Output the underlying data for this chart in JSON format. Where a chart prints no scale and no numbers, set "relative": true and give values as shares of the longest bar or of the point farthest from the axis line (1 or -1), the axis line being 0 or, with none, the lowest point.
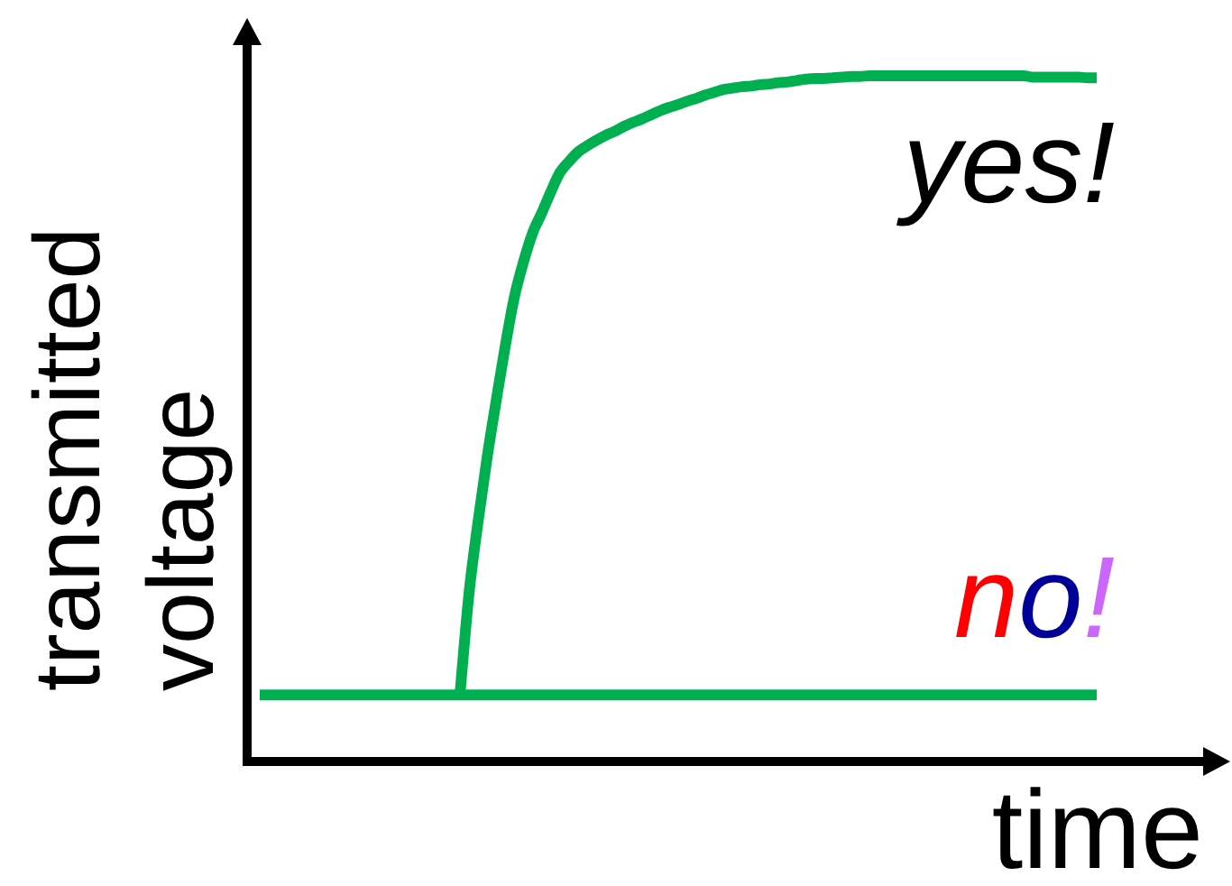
{
  "chart_data": {
    "type": "line",
    "relative": true,
    "xlabel": "time",
    "ylabel": "transmitted voltage",
    "marker": "none",
    "categories": [
      null,
      null,
      null,
      null,
      null,
      null,
      null,
      null,
      null,
      null,
      null,
      null,
      null,
      null,
      null,
      null,
      null,
      null,
      null,
      null,
      null,
      null,
      null,
      null,
      null,
      null,
      null,
      null,
      null,
      null,
      null,
      null,
      null,
      null,
      null,
      null,
      null,
      null,
      null,
      null,
      null,
      null,
      null,
      null,
      null,
      null,
      null,
      null,
      null,
      null,
      null,
      null,
      null,
      null,
      null,
      null,
      null,
      null,
      null,
      null,
      null,
      null,
      null,
      null,
      null,
      null,
      null,
      null,
      null,
      null,
      null,
      null,
      null,
      null,
      null,
      null,
      null,
      null,
      null,
      null,
      null,
      null,
      null,
      null,
      null,
      null,
      null,
      null,
      null,
      null,
      null,
      null,
      null
    ],
    "series": [
      {
        "name": "yes!",
        "color": "#00b050",
        "values": [
          null,
          null,
          null,
          null,
          null,
          null,
          null,
          null,
          null,
          null,
          null,
          null,
          null,
          null,
          null,
          null,
          null,
          null,
          null,
          null,
          null,
          null,
          0.097,
          0.245,
          0.35,
          0.444,
          0.527,
          0.607,
          0.678,
          0.729,
          0.771,
          0.8,
          0.831,
          0.859,
          0.875,
          0.889,
          0.898,
          0.906,
          0.913,
          0.919,
          0.926,
          0.932,
          0.937,
          0.943,
          0.949,
          0.954,
          0.958,
          0.963,
          0.967,
          0.972,
          0.976,
          0.98,
          0.982,
          0.984,
          0.985,
          0.987,
          0.988,
          0.99,
          0.991,
          0.993,
          0.995,
          0.996,
          0.996,
          0.997,
          0.998,
          0.999,
          0.999,
          1,
          1,
          1,
          1,
          1,
          1,
          1,
          1,
          1,
          1,
          1,
          1,
          1,
          1,
          1,
          1,
          1,
          1,
          0.998,
          0.998,
          0.998,
          0.998,
          0.998,
          0.998,
          0.997,
          0.997
        ]
      },
      {
        "name": "no!",
        "color": "#00b050",
        "values": [
          0.097,
          0.097,
          0.097,
          0.097,
          0.097,
          0.097,
          0.097,
          0.097,
          0.097,
          0.097,
          0.097,
          0.097,
          0.097,
          0.097,
          0.097,
          0.097,
          0.097,
          0.097,
          0.097,
          0.097,
          0.097,
          0.097,
          0.097,
          0.097,
          0.097,
          0.097,
          0.097,
          0.097,
          0.097,
          0.097,
          0.097,
          0.097,
          0.097,
          0.097,
          0.097,
          0.097,
          0.097,
          0.097,
          0.097,
          0.097,
          0.097,
          0.097,
          0.097,
          0.097,
          0.097,
          0.097,
          0.097,
          0.097,
          0.097,
          0.097,
          0.097,
          0.097,
          0.097,
          0.097,
          0.097,
          0.097,
          0.097,
          0.097,
          0.097,
          0.097,
          0.097,
          0.097,
          0.097,
          0.097,
          0.097,
          0.097,
          0.097,
          0.097,
          0.097,
          0.097,
          0.097,
          0.097,
          0.097,
          0.097,
          0.097,
          0.097,
          0.097,
          0.097,
          0.097,
          0.097,
          0.097,
          0.097,
          0.097,
          0.097,
          0.097,
          0.097,
          0.097,
          0.097,
          0.097,
          0.097,
          0.097,
          0.097,
          0.097
        ]
      }
    ]
  }
}
